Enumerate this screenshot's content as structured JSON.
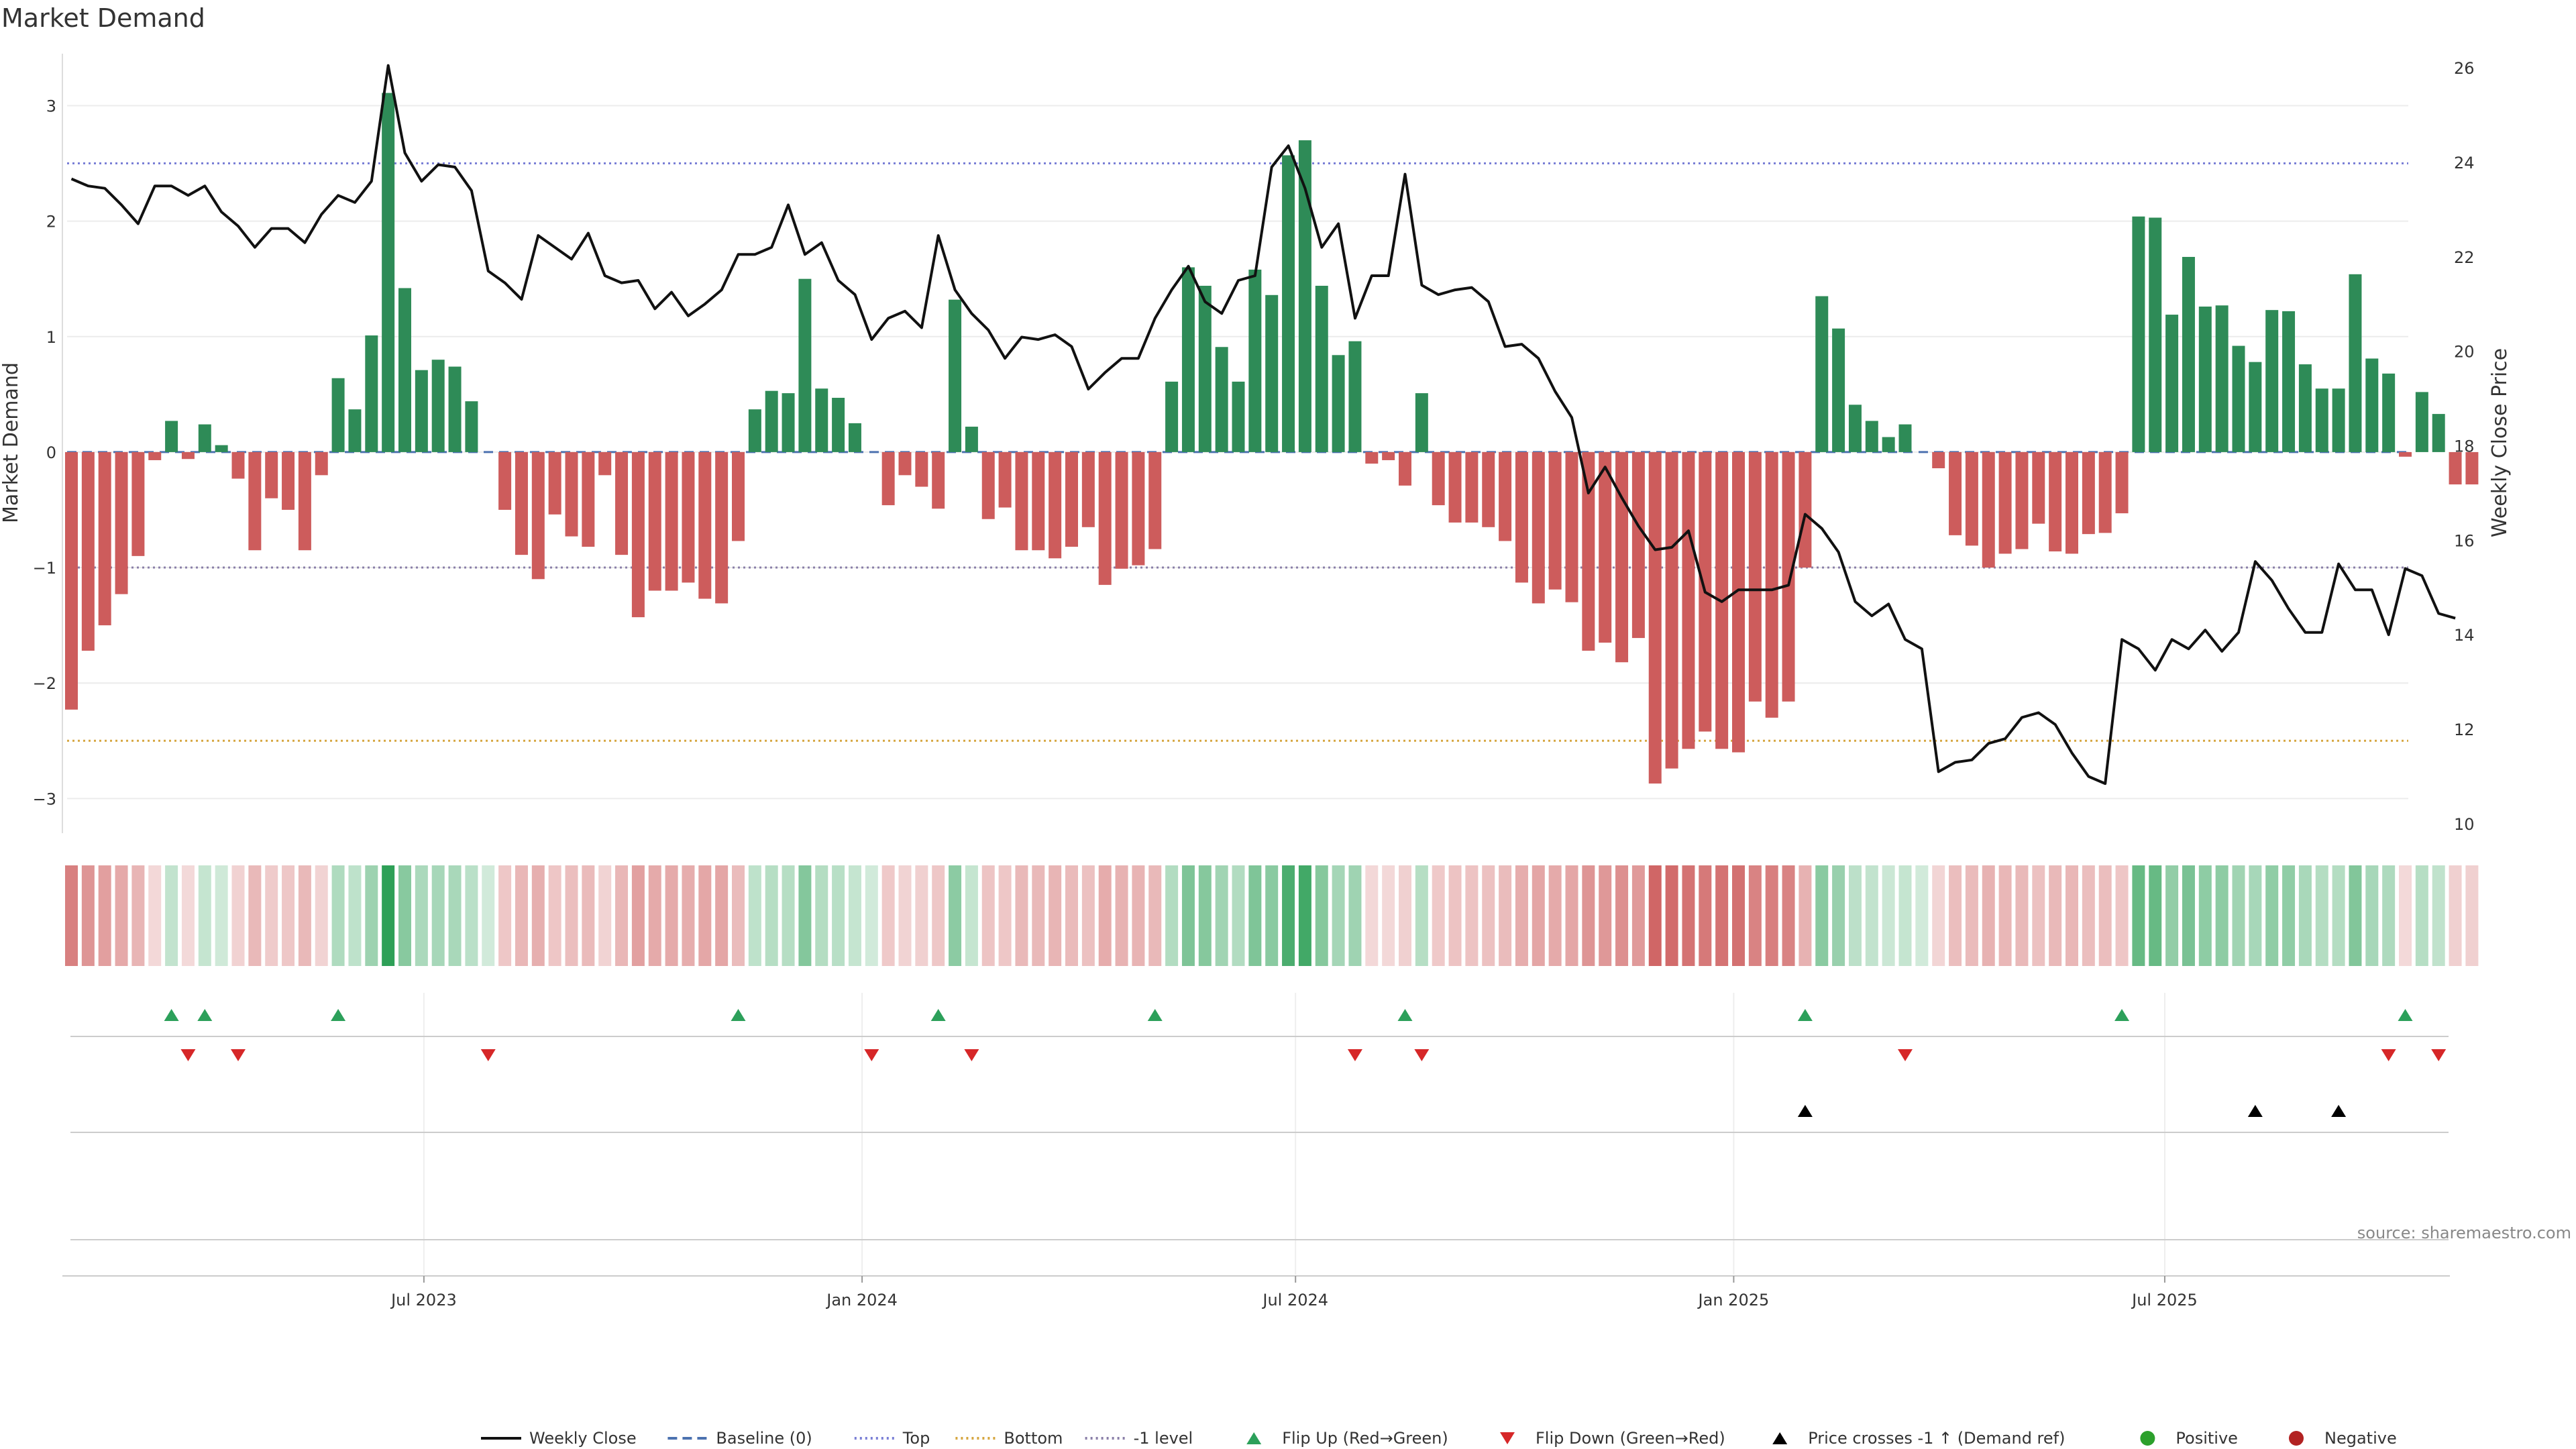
{
  "chart_data": {
    "type": "bar",
    "title": "Market Demand",
    "ylabel": "Market Demand",
    "y2label": "Weekly Close Price",
    "ylim": [
      -3.3,
      3.45
    ],
    "y2lim": [
      9.8,
      26.3
    ],
    "yticks": [
      3,
      2,
      1,
      0,
      -1,
      -2,
      -3
    ],
    "y2ticks": [
      26,
      24,
      22,
      20,
      18,
      16,
      14,
      12,
      10
    ],
    "xticks": [
      "Jul 2023",
      "Jan 2024",
      "Jul 2024",
      "Jan 2025",
      "Jul 2025"
    ],
    "source_text": "source: sharemaestro.com",
    "grid": true,
    "legend_position": "bottom",
    "reference_lines": [
      {
        "name": "Top",
        "value": 2.5,
        "color": "#7a7fd6"
      },
      {
        "name": "-1 level",
        "value": -1.0,
        "color": "#8a7fa8"
      },
      {
        "name": "Bottom",
        "value": -2.5,
        "color": "#d6a640"
      }
    ],
    "colors": {
      "positive": "#2e8b57",
      "negative": "#cd5c5c",
      "price": "#111111",
      "flip_up": "#2ca05a",
      "flip_down": "#d62728",
      "cross": "#000000"
    },
    "demand": [
      -2.23,
      -1.72,
      -1.5,
      -1.23,
      -0.9,
      -0.07,
      0.27,
      -0.06,
      0.24,
      0.06,
      -0.23,
      -0.85,
      -0.4,
      -0.5,
      -0.85,
      -0.2,
      0.64,
      0.37,
      1.01,
      3.11,
      1.42,
      0.71,
      0.8,
      0.74,
      0.44,
      0,
      -0.5,
      -0.89,
      -1.1,
      -0.54,
      -0.73,
      -0.82,
      -0.2,
      -0.89,
      -1.43,
      -1.2,
      -1.2,
      -1.13,
      -1.27,
      -1.31,
      -0.77,
      0.37,
      0.53,
      0.51,
      1.5,
      0.55,
      0.47,
      0.25,
      0,
      -0.46,
      -0.2,
      -0.3,
      -0.49,
      1.32,
      0.22,
      -0.58,
      -0.48,
      -0.85,
      -0.85,
      -0.92,
      -0.82,
      -0.65,
      -1.15,
      -1.01,
      -0.98,
      -0.84,
      0.61,
      1.6,
      1.44,
      0.91,
      0.61,
      1.58,
      1.36,
      2.57,
      2.7,
      1.44,
      0.84,
      0.96,
      -0.1,
      -0.07,
      -0.29,
      0.51,
      -0.46,
      -0.61,
      -0.61,
      -0.65,
      -0.77,
      -1.13,
      -1.31,
      -1.19,
      -1.3,
      -1.72,
      -1.65,
      -1.82,
      -1.61,
      -2.87,
      -2.74,
      -2.57,
      -2.42,
      -2.57,
      -2.6,
      -2.16,
      -2.3,
      -2.16,
      -1.0,
      1.35,
      1.07,
      0.41,
      0.27,
      0.13,
      0.24,
      0,
      -0.14,
      -0.72,
      -0.81,
      -1.0,
      -0.88,
      -0.84,
      -0.62,
      -0.86,
      -0.88,
      -0.71,
      -0.7,
      -0.53,
      2.04,
      2.03,
      1.19,
      1.69,
      1.26,
      1.27,
      0.92,
      0.78,
      1.23,
      1.22,
      0.76,
      0.55,
      0.55,
      1.54,
      0.81,
      0.68,
      -0.04,
      0.52,
      0.33,
      -0.28,
      -0.28
    ],
    "price": [
      23.65,
      23.5,
      23.45,
      23.1,
      22.7,
      23.5,
      23.5,
      23.3,
      23.5,
      22.95,
      22.65,
      22.2,
      22.6,
      22.6,
      22.3,
      22.9,
      23.3,
      23.15,
      23.6,
      26.05,
      24.2,
      23.6,
      23.95,
      23.9,
      23.4,
      21.7,
      21.45,
      21.1,
      22.45,
      22.2,
      21.95,
      22.5,
      21.6,
      21.45,
      21.5,
      20.9,
      21.25,
      20.75,
      21.0,
      21.3,
      22.05,
      22.05,
      22.2,
      23.1,
      22.05,
      22.3,
      21.5,
      21.2,
      20.25,
      20.7,
      20.85,
      20.5,
      22.45,
      21.3,
      20.8,
      20.45,
      19.85,
      20.3,
      20.25,
      20.35,
      20.1,
      19.2,
      19.55,
      19.85,
      19.85,
      20.7,
      21.3,
      21.8,
      21.05,
      20.8,
      21.5,
      21.6,
      23.9,
      24.35,
      23.45,
      22.2,
      22.7,
      20.7,
      21.6,
      21.6,
      23.75,
      21.4,
      21.2,
      21.3,
      21.35,
      21.05,
      20.1,
      20.15,
      19.85,
      19.15,
      18.6,
      17.0,
      17.55,
      16.9,
      16.3,
      15.8,
      15.85,
      16.2,
      14.9,
      14.7,
      14.95,
      14.95,
      14.95,
      15.05,
      16.55,
      16.25,
      15.75,
      14.7,
      14.4,
      14.65,
      13.9,
      13.7,
      11.1,
      11.3,
      11.35,
      11.7,
      11.8,
      12.25,
      12.35,
      12.1,
      11.5,
      11.0,
      10.85,
      13.9,
      13.7,
      13.25,
      13.9,
      13.7,
      14.1,
      13.65,
      14.05,
      15.55,
      15.15,
      14.55,
      14.05,
      14.05,
      15.5,
      14.95,
      14.95,
      14.0,
      15.4,
      15.25,
      14.45,
      14.35
    ],
    "x_range": [
      "2023-02-03",
      "2025-12-26"
    ],
    "flip_up_weeks": [
      6,
      8,
      16,
      40,
      52,
      65,
      80,
      104,
      123,
      140
    ],
    "flip_down_weeks": [
      7,
      10,
      25,
      48,
      54,
      77,
      81,
      110,
      139,
      142
    ],
    "price_cross_weeks": [
      104,
      131,
      136
    ]
  },
  "legend": [
    {
      "label": "Weekly Close",
      "kind": "solid-line",
      "color": "#111111"
    },
    {
      "label": "Baseline (0)",
      "kind": "dashed-line",
      "color": "#4c72b0"
    },
    {
      "label": "Top",
      "kind": "dotted-line",
      "color": "#7a7fd6"
    },
    {
      "label": "Bottom",
      "kind": "dotted-line",
      "color": "#d6a640"
    },
    {
      "label": "-1 level",
      "kind": "dotted-line",
      "color": "#8a7fa8"
    },
    {
      "label": "Flip Up (Red→Green)",
      "kind": "triangle-up",
      "color": "#2ca05a"
    },
    {
      "label": "Flip Down (Green→Red)",
      "kind": "triangle-down",
      "color": "#d62728"
    },
    {
      "label": "Price crosses -1 ↑ (Demand ref)",
      "kind": "triangle-up",
      "color": "#000000"
    },
    {
      "label": "Positive",
      "kind": "dot",
      "color": "#2ca02c"
    },
    {
      "label": "Negative",
      "kind": "dot",
      "color": "#b22222"
    }
  ]
}
